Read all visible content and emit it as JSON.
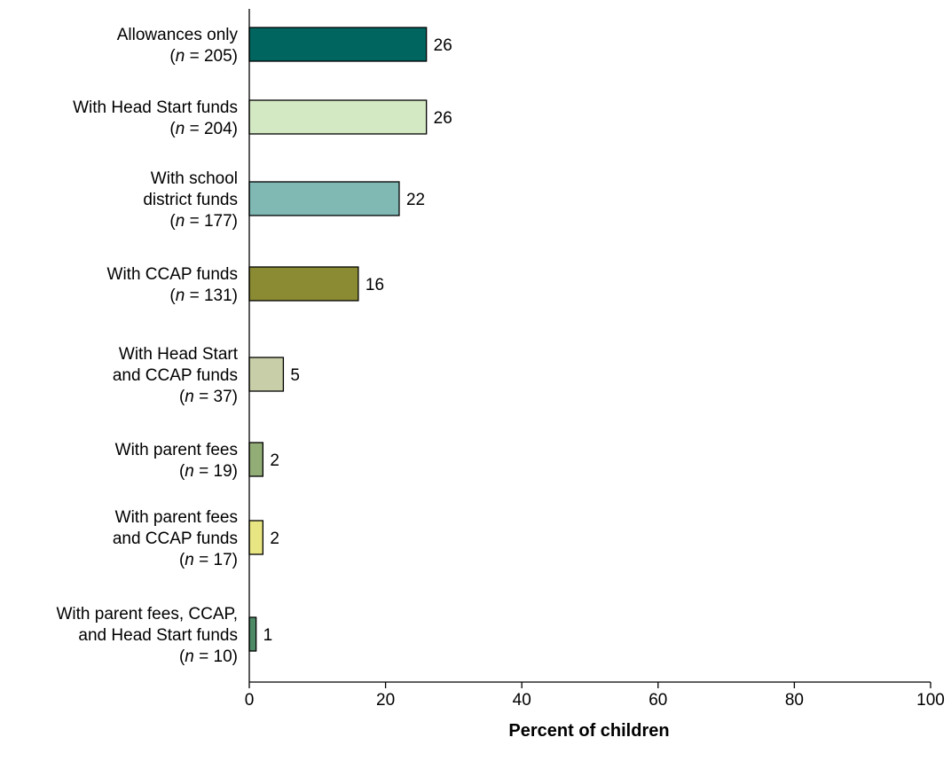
{
  "chart_data": {
    "type": "bar",
    "orientation": "horizontal",
    "xlabel": "Percent of children",
    "xlim": [
      0,
      100
    ],
    "xticks": [
      0,
      20,
      40,
      60,
      80,
      100
    ],
    "grid": false,
    "bars": [
      {
        "label_lines": [
          [
            "Allowances only"
          ],
          [
            [
              "(",
              ""
            ],
            [
              "n",
              "it"
            ],
            [
              " = 205)",
              ""
            ]
          ]
        ],
        "value": 26,
        "value_label": "26",
        "color": "#00645f"
      },
      {
        "label_lines": [
          [
            "With Head Start funds"
          ],
          [
            [
              "(",
              ""
            ],
            [
              "n",
              "it"
            ],
            [
              " = 204)",
              ""
            ]
          ]
        ],
        "value": 26,
        "value_label": "26",
        "color": "#d3e9c4"
      },
      {
        "label_lines": [
          [
            "With school"
          ],
          [
            "district funds"
          ],
          [
            [
              "(",
              ""
            ],
            [
              "n",
              "it"
            ],
            [
              " = 177)",
              ""
            ]
          ]
        ],
        "value": 22,
        "value_label": "22",
        "color": "#80b8b4"
      },
      {
        "label_lines": [
          [
            "With CCAP funds"
          ],
          [
            [
              "(",
              ""
            ],
            [
              "n",
              "it"
            ],
            [
              " = 131)",
              ""
            ]
          ]
        ],
        "value": 16,
        "value_label": "16",
        "color": "#8b8b33"
      },
      {
        "label_lines": [
          [
            "With Head Start"
          ],
          [
            "and CCAP funds"
          ],
          [
            [
              "(",
              ""
            ],
            [
              "n",
              "it"
            ],
            [
              " = 37)",
              ""
            ]
          ]
        ],
        "value": 5,
        "value_label": "5",
        "color": "#c8cfa8"
      },
      {
        "label_lines": [
          [
            "With parent fees"
          ],
          [
            [
              "(",
              ""
            ],
            [
              "n",
              "it"
            ],
            [
              " = 19)",
              ""
            ]
          ]
        ],
        "value": 2,
        "value_label": "2",
        "color": "#93ad77"
      },
      {
        "label_lines": [
          [
            "With parent fees"
          ],
          [
            "and CCAP funds"
          ],
          [
            [
              "(",
              ""
            ],
            [
              "n",
              "it"
            ],
            [
              " = 17)",
              ""
            ]
          ]
        ],
        "value": 2,
        "value_label": "2",
        "color": "#e8e583"
      },
      {
        "label_lines": [
          [
            "With parent fees, CCAP,"
          ],
          [
            "and Head Start funds"
          ],
          [
            [
              "(",
              ""
            ],
            [
              "n",
              "it"
            ],
            [
              " = 10)",
              ""
            ]
          ]
        ],
        "value": 1,
        "value_label": "1",
        "color": "#4e8a66"
      }
    ]
  }
}
